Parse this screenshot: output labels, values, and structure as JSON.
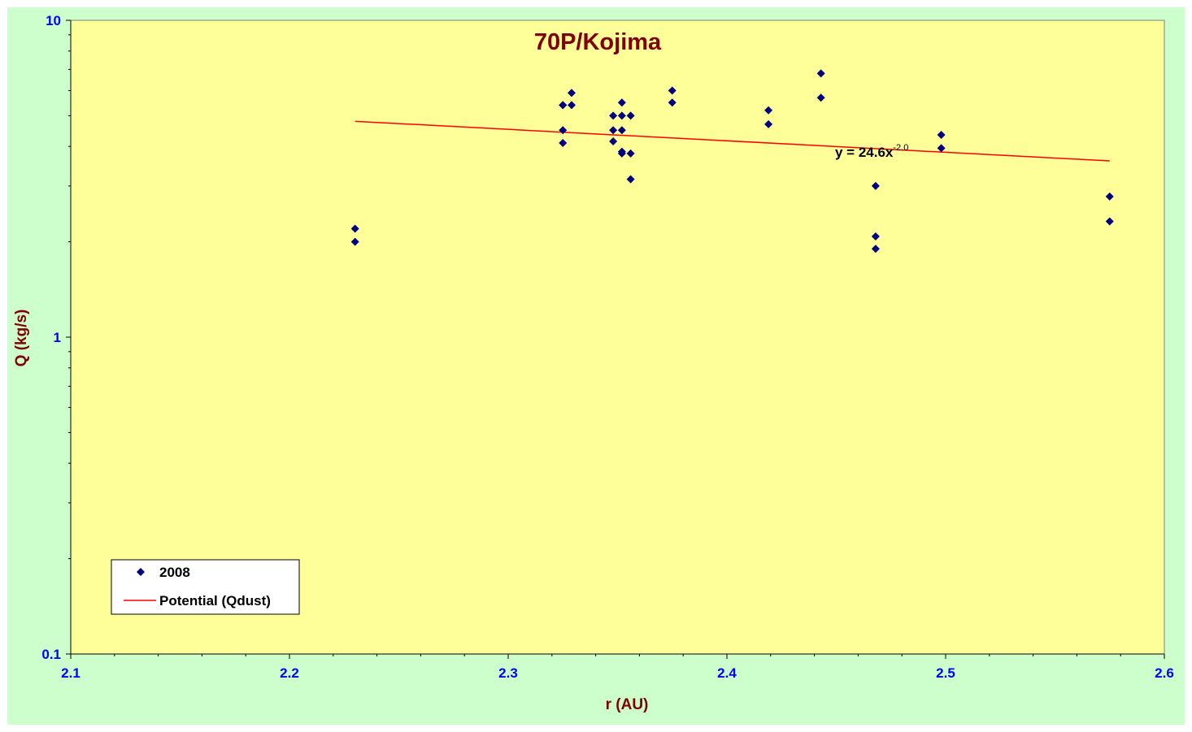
{
  "colors": {
    "outer_bg": "#ccffcc",
    "plot_bg": "#ffff99",
    "title": "#800000",
    "axis_title": "#800000",
    "tick_label": "#0000ff",
    "marker": "#000080",
    "trend": "#ff0000"
  },
  "chart_data": {
    "type": "scatter",
    "title": "70P/Kojima",
    "xlabel": "r (AU)",
    "ylabel": "Q (kg/s)",
    "xlim": [
      2.1,
      2.6
    ],
    "ylim": [
      0.1,
      10
    ],
    "y_scale": "log",
    "x_ticks": [
      "2.1",
      "2.2",
      "2.3",
      "2.4",
      "2.5",
      "2.6"
    ],
    "y_ticks": [
      "0.1",
      "1",
      "10"
    ],
    "grid": false,
    "legend": "bottom-left",
    "series": [
      {
        "name": "2008",
        "marker": "diamond",
        "x": [
          2.23,
          2.23,
          2.325,
          2.325,
          2.325,
          2.325,
          2.329,
          2.329,
          2.348,
          2.348,
          2.348,
          2.352,
          2.352,
          2.352,
          2.352,
          2.352,
          2.356,
          2.356,
          2.356,
          2.375,
          2.375,
          2.419,
          2.419,
          2.443,
          2.443,
          2.468,
          2.468,
          2.468,
          2.498,
          2.498,
          2.575,
          2.575
        ],
        "y": [
          2.2,
          2.0,
          5.4,
          4.5,
          4.1,
          5.4,
          5.9,
          5.4,
          5.0,
          4.5,
          4.15,
          5.5,
          5.0,
          4.5,
          3.85,
          3.8,
          5.0,
          3.8,
          3.15,
          6.0,
          5.5,
          5.2,
          4.7,
          6.8,
          5.7,
          3.0,
          2.08,
          1.9,
          4.35,
          3.95,
          2.78,
          2.32
        ]
      },
      {
        "name": "Potential (Qdust)",
        "type": "line",
        "x": [
          2.23,
          2.575
        ],
        "y": [
          4.8,
          3.6
        ]
      }
    ],
    "annotations": [
      {
        "text": "y = 24.6x",
        "superscript": "-2.0"
      }
    ]
  }
}
